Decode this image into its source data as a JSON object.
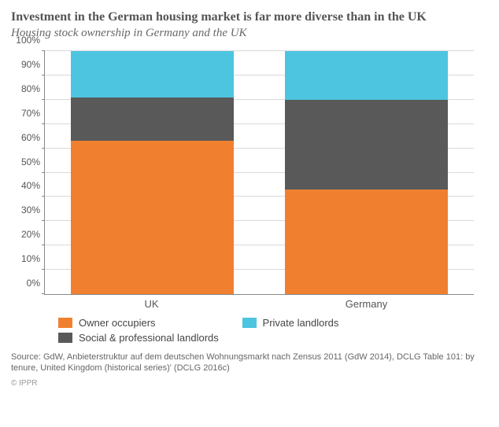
{
  "title": "Investment in the German housing market is far more diverse than in the UK",
  "subtitle": "Housing stock ownership in Germany and the UK",
  "chart": {
    "type": "stacked-bar-100",
    "ylim": [
      0,
      100
    ],
    "ytick_step": 10,
    "y_suffix": "%",
    "grid_color": "#d9d9d9",
    "axis_color": "#888888",
    "background_color": "#ffffff",
    "bar_width_pct": 38,
    "categories": [
      "UK",
      "Germany"
    ],
    "series": [
      {
        "name": "Owner occupiers",
        "color": "#f08030",
        "values": [
          63,
          43
        ]
      },
      {
        "name": "Social & professional landlords",
        "color": "#595959",
        "values": [
          18,
          37
        ]
      },
      {
        "name": "Private landlords",
        "color": "#4dc4e0",
        "values": [
          19,
          20
        ]
      }
    ],
    "label_fontsize": 12,
    "label_color": "#555555"
  },
  "legend": {
    "items": [
      {
        "label": "Owner occupiers",
        "color": "#f08030"
      },
      {
        "label": "Private landlords",
        "color": "#4dc4e0"
      },
      {
        "label": "Social & professional landlords",
        "color": "#595959"
      }
    ]
  },
  "source": "Source: GdW, Anbieterstruktur auf dem deutschen Wohnungsmarkt nach Zensus 2011 (GdW 2014), DCLG Table 101: by tenure, United Kingdom (historical series)' (DCLG 2016c)",
  "watermark": "© IPPR"
}
